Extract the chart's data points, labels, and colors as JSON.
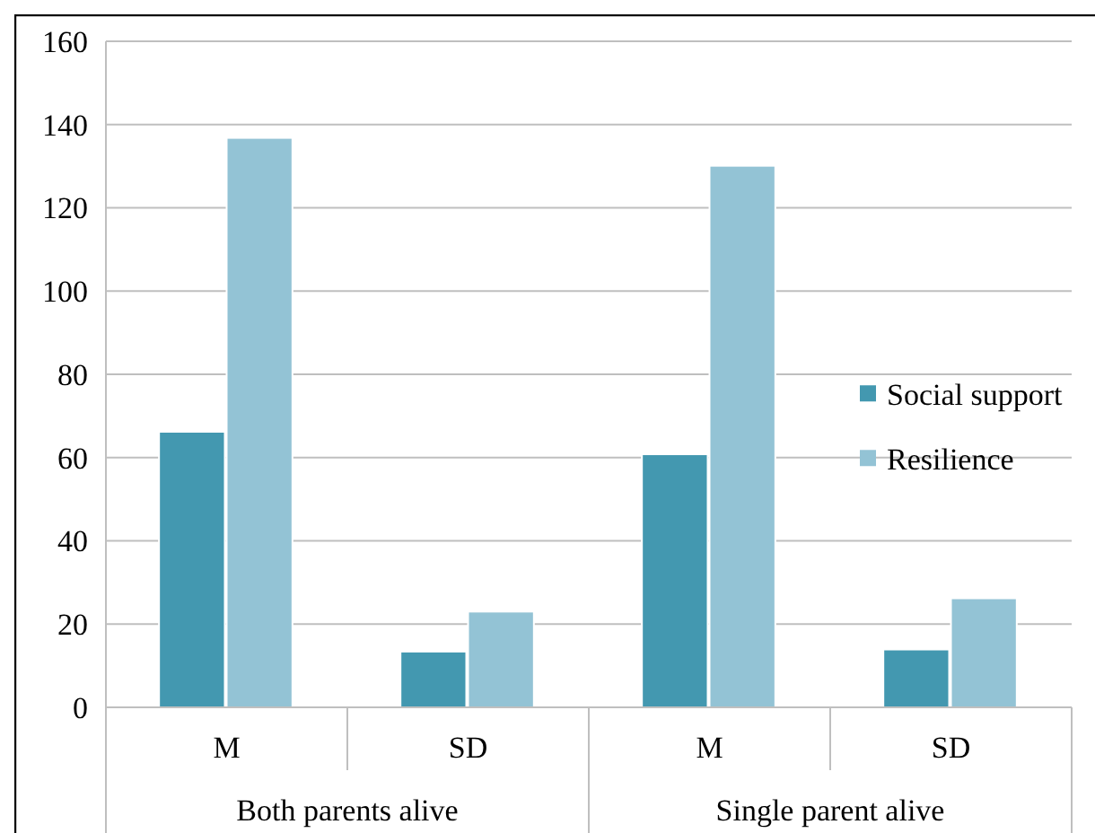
{
  "chart_data": {
    "type": "bar",
    "categories": [
      "M",
      "SD",
      "M",
      "SD"
    ],
    "series": [
      {
        "name": "Social support",
        "color": "#4398b0",
        "values": [
          66.2,
          13.4,
          60.8,
          13.9
        ]
      },
      {
        "name": "Resilience",
        "color": "#93c3d5",
        "values": [
          136.8,
          23.0,
          130.1,
          26.2
        ]
      }
    ],
    "ylim": [
      0,
      160
    ],
    "yticks": [
      0,
      20,
      40,
      60,
      80,
      100,
      120,
      140,
      160
    ],
    "grid": "y",
    "legend": "right",
    "annotations": [
      "Both parents alive",
      "Single parent alive"
    ]
  }
}
